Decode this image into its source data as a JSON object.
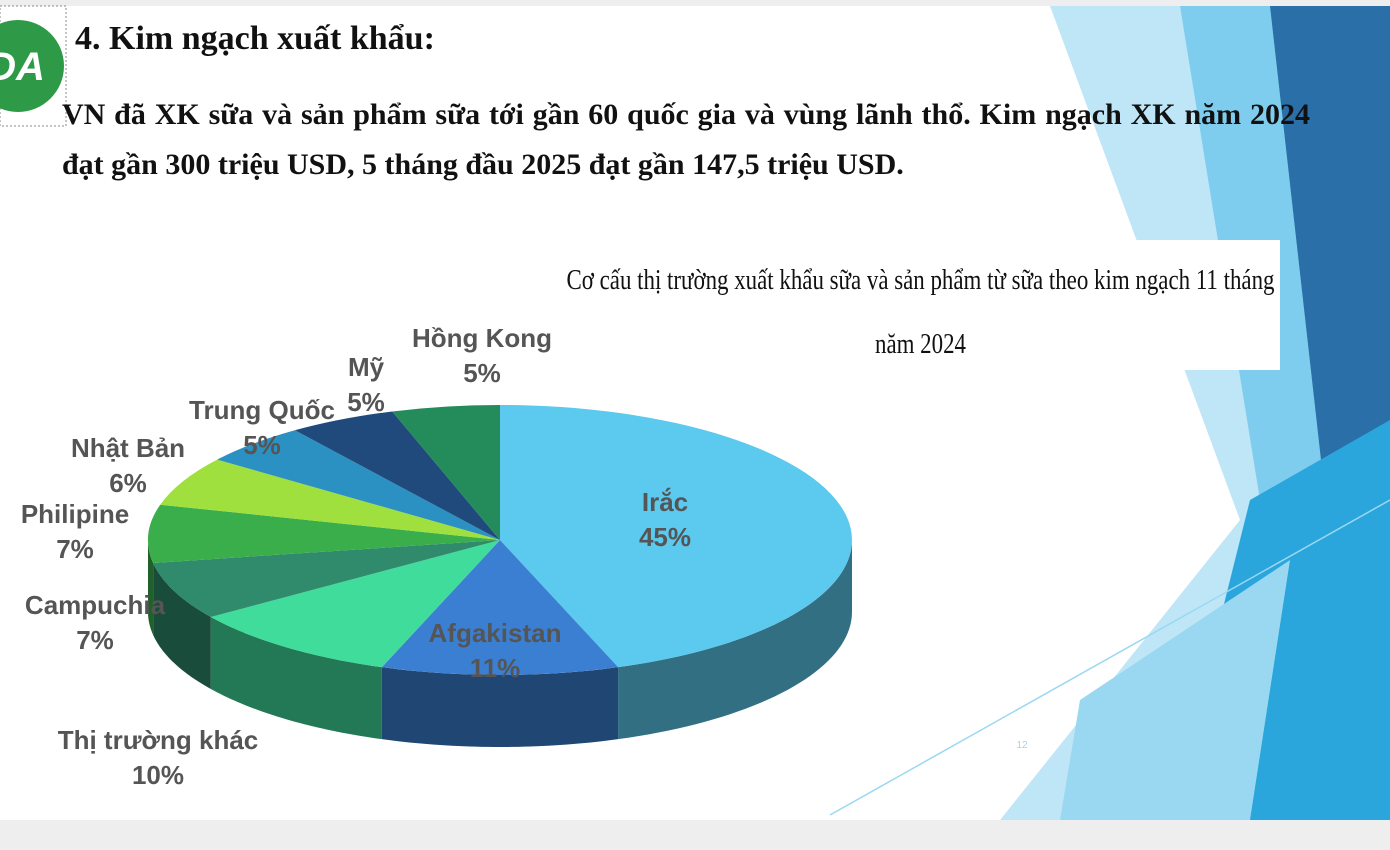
{
  "slide": {
    "logo": "DA",
    "heading": "4. Kim ngạch xuất khẩu:",
    "body": "VN đã XK sữa và sản phẩm sữa tới gần 60 quốc gia và vùng lãnh thổ.  Kim ngạch XK năm 2024 đạt gần 300 triệu USD, 5 tháng đầu 2025 đạt gần 147,5 triệu USD.",
    "page_number": "12"
  },
  "chart_data": {
    "type": "pie",
    "title": "Cơ cấu thị trường xuất khẩu sữa và sản phẩm từ sữa theo kim ngạch 11 tháng năm 2024",
    "categories": [
      "Irắc",
      "Afgakistan",
      "Thị trường khác",
      "Campuchia",
      "Philipine",
      "Nhật Bản",
      "Trung Quốc",
      "Mỹ",
      "Hồng Kong"
    ],
    "values": [
      45,
      11,
      10,
      7,
      7,
      6,
      5,
      5,
      5
    ],
    "value_labels": [
      "45%",
      "11%",
      "10%",
      "7%",
      "7%",
      "6%",
      "5%",
      "5%",
      "5%"
    ],
    "colors": [
      "#5cc9ef",
      "#3b7fd2",
      "#40dc9c",
      "#2f8b6b",
      "#3bae4c",
      "#9fe03e",
      "#2b90c2",
      "#1f4a7b",
      "#248b5b"
    ]
  }
}
